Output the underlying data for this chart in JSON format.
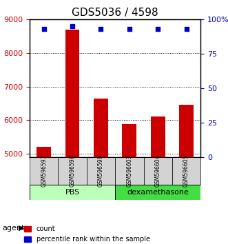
{
  "title": "GDS5036 / 4598",
  "samples": [
    "GSM596597",
    "GSM596598",
    "GSM596599",
    "GSM596603",
    "GSM596604",
    "GSM596605"
  ],
  "counts": [
    5200,
    8700,
    6650,
    5880,
    6100,
    6450
  ],
  "percentile_ranks": [
    93,
    95,
    93,
    93,
    93,
    93
  ],
  "bar_color": "#cc0000",
  "dot_color": "#0000cc",
  "ylim_left": [
    4900,
    9000
  ],
  "ylim_right": [
    0,
    100
  ],
  "yticks_left": [
    5000,
    6000,
    7000,
    8000,
    9000
  ],
  "yticks_right": [
    0,
    25,
    50,
    75,
    100
  ],
  "yticklabels_right": [
    "0",
    "25",
    "50",
    "75",
    "100%"
  ],
  "groups": [
    {
      "label": "PBS",
      "samples": [
        "GSM596597",
        "GSM596598",
        "GSM596599"
      ],
      "color": "#aaffaa"
    },
    {
      "label": "dexamethasone",
      "samples": [
        "GSM596603",
        "GSM596604",
        "GSM596605"
      ],
      "color": "#44dd44"
    }
  ],
  "group_row_label": "agent",
  "legend_count_label": "count",
  "legend_pct_label": "percentile rank within the sample",
  "bar_width": 0.5,
  "background_color": "#ffffff",
  "plot_bg_color": "#ffffff",
  "grid_color": "#000000",
  "bar_baseline": 4900
}
